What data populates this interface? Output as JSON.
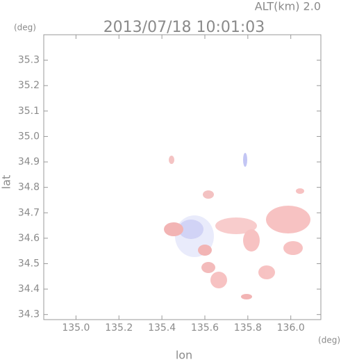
{
  "chart_data": {
    "type": "map",
    "title": "2013/07/18 10:01:03",
    "subtitle": "ALT(km)  2.0",
    "x_label": "lon",
    "y_label": "lat",
    "x_unit": "(deg)",
    "y_unit": "(deg)",
    "xlim": [
      134.85,
      136.14
    ],
    "ylim": [
      34.28,
      35.4
    ],
    "xticks": [
      {
        "value": 135,
        "label": "135.0"
      },
      135.2,
      135.4,
      135.6,
      135.8,
      {
        "value": 136,
        "label": "136.0"
      }
    ],
    "yticks": [
      34.3,
      34.4,
      34.5,
      34.6,
      34.7,
      34.8,
      34.9,
      {
        "value": 35,
        "label": "35.0"
      },
      35.1,
      35.2,
      35.3
    ]
  }
}
